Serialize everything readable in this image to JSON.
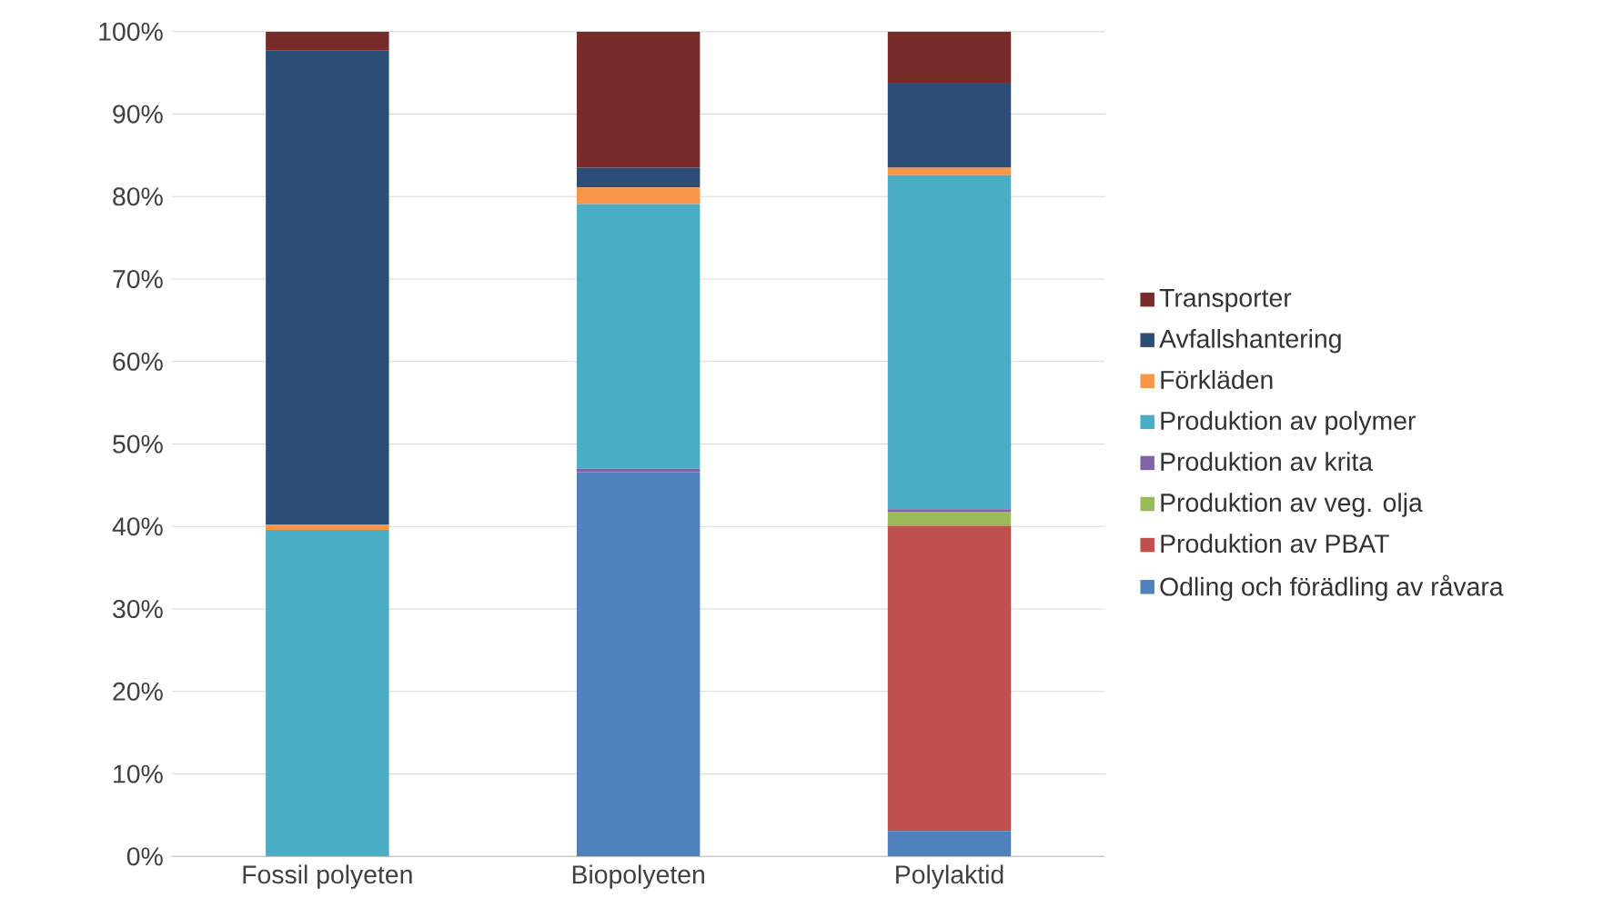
{
  "chart_data": {
    "type": "bar",
    "stacked": true,
    "categories": [
      "Fossil polyeten",
      "Biopolyeten",
      "Polylaktid"
    ],
    "series": [
      {
        "name": "Odling och förädling av råvara",
        "color": "#4f81bd",
        "values": [
          null,
          46.6,
          3.1
        ]
      },
      {
        "name": "Produktion av PBAT",
        "color": "#c0504d",
        "values": [
          null,
          null,
          37.0
        ]
      },
      {
        "name": "Produktion av veg. olja",
        "color": "#9bbb59",
        "values": [
          null,
          null,
          1.7
        ]
      },
      {
        "name": "Produktion av krita",
        "color": "#8064a2",
        "values": [
          null,
          0.4,
          0.3
        ]
      },
      {
        "name": "Produktion av polymer",
        "color": "#4bacc6",
        "values": [
          39.6,
          32.1,
          40.5
        ]
      },
      {
        "name": "Förkläden",
        "color": "#f79646",
        "values": [
          0.6,
          2.0,
          0.9
        ]
      },
      {
        "name": "Avfallshantering",
        "color": "#2c4d75",
        "values": [
          57.5,
          2.4,
          10.3
        ]
      },
      {
        "name": "Transporter",
        "color": "#772c2a",
        "values": [
          2.3,
          16.5,
          6.2
        ]
      }
    ],
    "ylim": [
      0,
      100
    ],
    "yticks": [
      {
        "value": 0,
        "label": "0%"
      },
      {
        "value": 10,
        "label": "10%"
      },
      {
        "value": 20,
        "label": "20%"
      },
      {
        "value": 30,
        "label": "30%"
      },
      {
        "value": 40,
        "label": "40%"
      },
      {
        "value": 50,
        "label": "50%"
      },
      {
        "value": 60,
        "label": "60%"
      },
      {
        "value": 70,
        "label": "70%"
      },
      {
        "value": 80,
        "label": "80%"
      },
      {
        "value": 90,
        "label": "90%"
      },
      {
        "value": 100,
        "label": "100%"
      }
    ],
    "grid": "y",
    "legend": "right"
  }
}
